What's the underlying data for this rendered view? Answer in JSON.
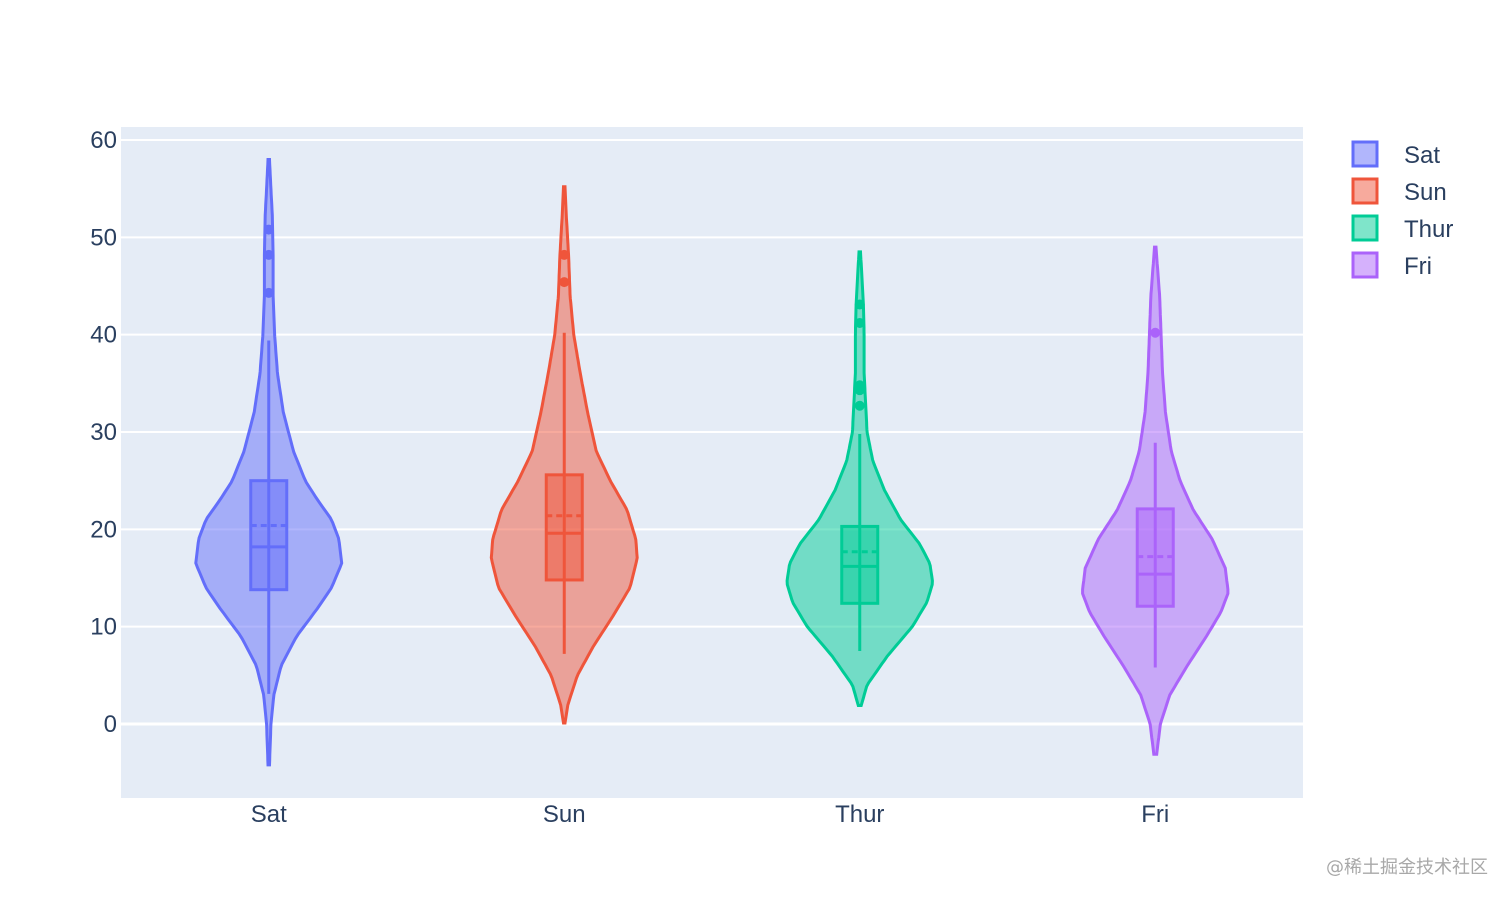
{
  "chart_data": {
    "type": "violin",
    "categories": [
      "Sat",
      "Sun",
      "Thur",
      "Fri"
    ],
    "ylim": [
      -7.6,
      61.3
    ],
    "yticks": [
      0,
      10,
      20,
      30,
      40,
      50,
      60
    ],
    "grid": true,
    "legend_position": "top-right",
    "series": [
      {
        "name": "Sat",
        "color": "#636efa",
        "kde_range": [
          -4.2,
          58.0
        ],
        "q1": 13.8,
        "median": 18.2,
        "q3": 25.0,
        "mean": 20.4,
        "whisker_low": 3.1,
        "whisker_high": 39.4,
        "outliers": [
          44.3,
          48.2,
          50.8
        ],
        "density": [
          [
            -4.2,
            0.01
          ],
          [
            0,
            0.03
          ],
          [
            3,
            0.07
          ],
          [
            6,
            0.17
          ],
          [
            9,
            0.38
          ],
          [
            12,
            0.68
          ],
          [
            14,
            0.86
          ],
          [
            16.5,
            1.0
          ],
          [
            19,
            0.96
          ],
          [
            21,
            0.86
          ],
          [
            23,
            0.67
          ],
          [
            25,
            0.5
          ],
          [
            28,
            0.34
          ],
          [
            32,
            0.2
          ],
          [
            36,
            0.12
          ],
          [
            40,
            0.08
          ],
          [
            44,
            0.06
          ],
          [
            48,
            0.06
          ],
          [
            52,
            0.05
          ],
          [
            55,
            0.03
          ],
          [
            58,
            0.01
          ]
        ]
      },
      {
        "name": "Sun",
        "color": "#ef553b",
        "kde_range": [
          0.1,
          55.2
        ],
        "q1": 14.8,
        "median": 19.6,
        "q3": 25.6,
        "mean": 21.4,
        "whisker_low": 7.2,
        "whisker_high": 40.2,
        "outliers": [
          45.4,
          48.2
        ],
        "density": [
          [
            0.1,
            0.01
          ],
          [
            2,
            0.05
          ],
          [
            5,
            0.18
          ],
          [
            8,
            0.4
          ],
          [
            11,
            0.66
          ],
          [
            14,
            0.9
          ],
          [
            17,
            1.0
          ],
          [
            19,
            0.98
          ],
          [
            22,
            0.86
          ],
          [
            25,
            0.63
          ],
          [
            28,
            0.44
          ],
          [
            32,
            0.32
          ],
          [
            36,
            0.22
          ],
          [
            40,
            0.13
          ],
          [
            44,
            0.08
          ],
          [
            48,
            0.06
          ],
          [
            52,
            0.03
          ],
          [
            55.2,
            0.01
          ]
        ]
      },
      {
        "name": "Thur",
        "color": "#00cc96",
        "kde_range": [
          1.9,
          48.5
        ],
        "q1": 12.4,
        "median": 16.2,
        "q3": 20.3,
        "mean": 17.7,
        "whisker_low": 7.5,
        "whisker_high": 29.8,
        "outliers": [
          32.7,
          34.3,
          34.8,
          41.2,
          43.1
        ],
        "density": [
          [
            1.9,
            0.02
          ],
          [
            4,
            0.1
          ],
          [
            7,
            0.38
          ],
          [
            10,
            0.72
          ],
          [
            12.5,
            0.92
          ],
          [
            14.5,
            1.0
          ],
          [
            16.5,
            0.96
          ],
          [
            18.5,
            0.82
          ],
          [
            21,
            0.56
          ],
          [
            24,
            0.34
          ],
          [
            27,
            0.18
          ],
          [
            30,
            0.1
          ],
          [
            33,
            0.08
          ],
          [
            36,
            0.06
          ],
          [
            40,
            0.06
          ],
          [
            43,
            0.05
          ],
          [
            46,
            0.03
          ],
          [
            48.5,
            0.01
          ]
        ]
      },
      {
        "name": "Fri",
        "color": "#ab63fa",
        "kde_range": [
          -3.1,
          49.0
        ],
        "q1": 12.1,
        "median": 15.4,
        "q3": 22.1,
        "mean": 17.2,
        "whisker_low": 5.8,
        "whisker_high": 28.9,
        "outliers": [
          40.2
        ],
        "density": [
          [
            -3.1,
            0.02
          ],
          [
            0,
            0.07
          ],
          [
            3,
            0.2
          ],
          [
            6,
            0.44
          ],
          [
            9,
            0.7
          ],
          [
            11.5,
            0.9
          ],
          [
            13.5,
            1.0
          ],
          [
            16,
            0.96
          ],
          [
            19,
            0.78
          ],
          [
            22,
            0.52
          ],
          [
            25,
            0.34
          ],
          [
            28,
            0.22
          ],
          [
            32,
            0.14
          ],
          [
            36,
            0.1
          ],
          [
            40,
            0.08
          ],
          [
            44,
            0.06
          ],
          [
            47,
            0.03
          ],
          [
            49,
            0.01
          ]
        ]
      }
    ]
  },
  "watermark": "@稀土掘金技术社区"
}
